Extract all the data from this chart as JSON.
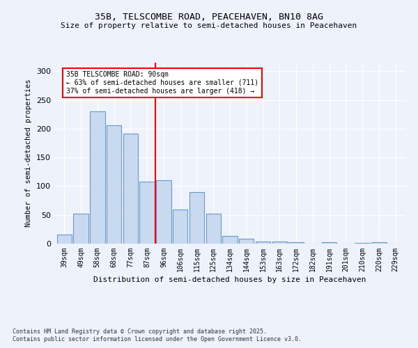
{
  "title1": "35B, TELSCOMBE ROAD, PEACEHAVEN, BN10 8AG",
  "title2": "Size of property relative to semi-detached houses in Peacehaven",
  "xlabel": "Distribution of semi-detached houses by size in Peacehaven",
  "ylabel": "Number of semi-detached properties",
  "bar_labels": [
    "39sqm",
    "49sqm",
    "58sqm",
    "68sqm",
    "77sqm",
    "87sqm",
    "96sqm",
    "106sqm",
    "115sqm",
    "125sqm",
    "134sqm",
    "144sqm",
    "153sqm",
    "163sqm",
    "172sqm",
    "182sqm",
    "191sqm",
    "201sqm",
    "210sqm",
    "220sqm",
    "229sqm"
  ],
  "bar_values": [
    16,
    52,
    230,
    206,
    191,
    108,
    110,
    59,
    90,
    52,
    13,
    9,
    4,
    4,
    3,
    0,
    2,
    0,
    1,
    3,
    0
  ],
  "bar_color": "#c9d9f0",
  "bar_edge_color": "#6699cc",
  "vline_x": 5.5,
  "vline_color": "red",
  "annotation_title": "35B TELSCOMBE ROAD: 90sqm",
  "annotation_line1": "← 63% of semi-detached houses are smaller (711)",
  "annotation_line2": "37% of semi-detached houses are larger (418) →",
  "ylim": [
    0,
    315
  ],
  "yticks": [
    0,
    50,
    100,
    150,
    200,
    250,
    300
  ],
  "footnote1": "Contains HM Land Registry data © Crown copyright and database right 2025.",
  "footnote2": "Contains public sector information licensed under the Open Government Licence v3.0.",
  "bg_color": "#eef2fb"
}
